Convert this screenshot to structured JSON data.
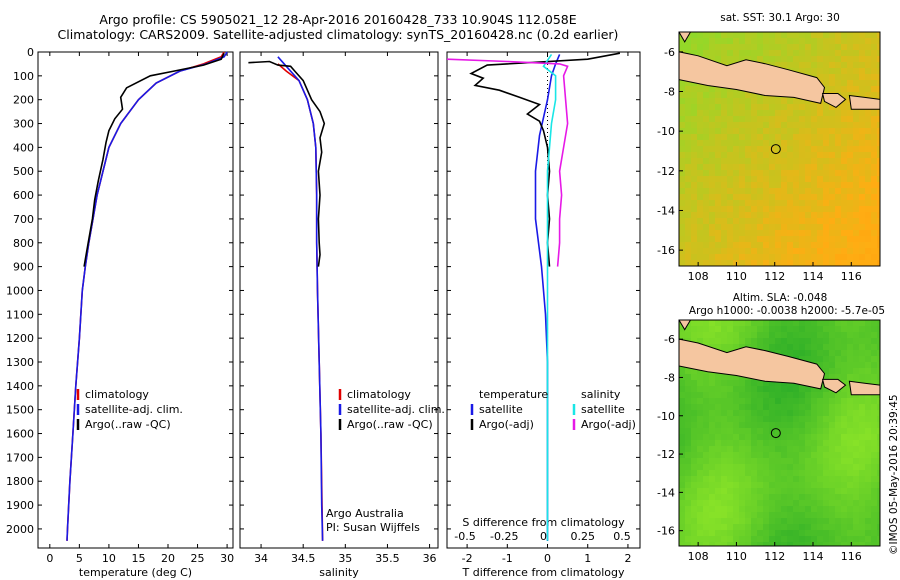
{
  "title": {
    "line1": "Argo profile: CS 5905021_12 28-Apr-2016 20160428_733 10.904S 112.058E",
    "line2": "Climatology: CARS2009. Satellite-adjusted climatology: synTS_20160428.nc (0.2d earlier)"
  },
  "watermark": "©IMOS 05-May-2016 20:39:45",
  "colors": {
    "climatology": "#e00000",
    "satellite": "#1a1ae6",
    "argo": "#000000",
    "satellite_salinity": "#19e6e6",
    "argo_salinity": "#e619e6",
    "land": "#f5c6a0"
  },
  "chart_data": [
    {
      "type": "line",
      "name": "temperature-panel",
      "xlabel": "temperature (deg C)",
      "ylabel": "",
      "xlim": [
        -2,
        31
      ],
      "ylim": [
        2080,
        0
      ],
      "xticks": [
        0,
        5,
        10,
        15,
        20,
        25,
        30
      ],
      "yticks": [
        0,
        100,
        200,
        300,
        400,
        500,
        600,
        700,
        800,
        900,
        1000,
        1100,
        1200,
        1300,
        1400,
        1500,
        1600,
        1700,
        1800,
        1900,
        2000
      ],
      "legend": [
        "climatology",
        "satellite-adj. clim.",
        "Argo(..raw -QC)"
      ],
      "series": [
        {
          "name": "climatology",
          "color": "#e00000",
          "points": [
            [
              29.5,
              0
            ],
            [
              29,
              20
            ],
            [
              26,
              50
            ],
            [
              22,
              80
            ],
            [
              18,
              130
            ],
            [
              15,
              200
            ],
            [
              12,
              300
            ],
            [
              10,
              400
            ],
            [
              9,
              500
            ],
            [
              8,
              600
            ],
            [
              7.3,
              700
            ],
            [
              6.6,
              800
            ],
            [
              6,
              900
            ],
            [
              5.5,
              1000
            ],
            [
              5,
              1200
            ],
            [
              4.4,
              1400
            ],
            [
              3.9,
              1600
            ],
            [
              3.4,
              1800
            ],
            [
              3,
              2000
            ],
            [
              2.9,
              2050
            ]
          ]
        },
        {
          "name": "satellite-adj. clim.",
          "color": "#1a1ae6",
          "points": [
            [
              30,
              0
            ],
            [
              29.5,
              20
            ],
            [
              26.5,
              50
            ],
            [
              22,
              80
            ],
            [
              18,
              130
            ],
            [
              15,
              200
            ],
            [
              12,
              300
            ],
            [
              10,
              400
            ],
            [
              9,
              500
            ],
            [
              8,
              600
            ],
            [
              7.3,
              700
            ],
            [
              6.6,
              800
            ],
            [
              6,
              900
            ],
            [
              5.5,
              1000
            ],
            [
              5,
              1200
            ],
            [
              4.4,
              1400
            ],
            [
              3.9,
              1600
            ],
            [
              3.4,
              1800
            ],
            [
              3,
              2000
            ],
            [
              2.9,
              2050
            ]
          ]
        },
        {
          "name": "Argo(..raw -QC)",
          "color": "#000000",
          "points": [
            [
              29.5,
              5
            ],
            [
              29,
              30
            ],
            [
              26,
              55
            ],
            [
              21,
              80
            ],
            [
              17,
              100
            ],
            [
              13,
              150
            ],
            [
              12,
              190
            ],
            [
              12.3,
              240
            ],
            [
              11,
              280
            ],
            [
              10,
              330
            ],
            [
              9.5,
              380
            ],
            [
              9,
              450
            ],
            [
              8.2,
              540
            ],
            [
              7.6,
              620
            ],
            [
              7.2,
              700
            ],
            [
              6.5,
              800
            ],
            [
              6,
              870
            ],
            [
              5.8,
              900
            ]
          ]
        }
      ]
    },
    {
      "type": "line",
      "name": "salinity-panel",
      "xlabel": "salinity",
      "ylabel": "",
      "xlim": [
        33.75,
        36.1
      ],
      "ylim": [
        2080,
        0
      ],
      "xticks": [
        34,
        34.5,
        35,
        35.5,
        36
      ],
      "legend": [
        "climatology",
        "satellite-adj. clim.",
        "Argo(..raw -QC)"
      ],
      "annotation": [
        "Argo Australia",
        "PI: Susan Wijffels"
      ],
      "series": [
        {
          "name": "climatology",
          "color": "#e00000",
          "points": [
            [
              34.2,
              50
            ],
            [
              34.3,
              80
            ],
            [
              34.45,
              120
            ],
            [
              34.55,
              200
            ],
            [
              34.62,
              300
            ],
            [
              34.65,
              400
            ],
            [
              34.66,
              600
            ],
            [
              34.66,
              800
            ],
            [
              34.67,
              1000
            ],
            [
              34.69,
              1300
            ],
            [
              34.71,
              1600
            ],
            [
              34.73,
              2050
            ]
          ]
        },
        {
          "name": "satellite-adj. clim.",
          "color": "#1a1ae6",
          "points": [
            [
              34.2,
              20
            ],
            [
              34.3,
              60
            ],
            [
              34.45,
              120
            ],
            [
              34.55,
              200
            ],
            [
              34.62,
              300
            ],
            [
              34.65,
              400
            ],
            [
              34.66,
              600
            ],
            [
              34.66,
              800
            ],
            [
              34.67,
              1000
            ],
            [
              34.69,
              1300
            ],
            [
              34.71,
              1600
            ],
            [
              34.72,
              1900
            ],
            [
              34.73,
              2050
            ]
          ]
        },
        {
          "name": "Argo(..raw -QC)",
          "color": "#000000",
          "points": [
            [
              33.85,
              45
            ],
            [
              34.1,
              40
            ],
            [
              34.2,
              55
            ],
            [
              34.35,
              60
            ],
            [
              34.4,
              80
            ],
            [
              34.5,
              120
            ],
            [
              34.6,
              200
            ],
            [
              34.7,
              250
            ],
            [
              34.75,
              300
            ],
            [
              34.7,
              360
            ],
            [
              34.72,
              420
            ],
            [
              34.68,
              500
            ],
            [
              34.7,
              600
            ],
            [
              34.68,
              700
            ],
            [
              34.69,
              800
            ],
            [
              34.7,
              850
            ],
            [
              34.68,
              900
            ]
          ]
        }
      ]
    },
    {
      "type": "line",
      "name": "difference-panel",
      "xlabel": "T difference from climatology",
      "xlabel2": "S difference from climatology",
      "xlim": [
        -2.5,
        2.3
      ],
      "ylim": [
        2080,
        0
      ],
      "xticks": [
        -2,
        -1,
        0,
        1,
        2
      ],
      "xticks2": [
        "-0.5",
        "-0.25",
        "0",
        "0.25",
        "0.5"
      ],
      "legend_left": {
        "title": "temperature",
        "items": [
          "satellite",
          "Argo(-adj)"
        ]
      },
      "legend_right": {
        "title": "salinity",
        "items": [
          "satellite",
          "Argo(-adj)"
        ]
      },
      "series": [
        {
          "name": "temperature satellite",
          "color": "#1a1ae6",
          "points": [
            [
              0.3,
              10
            ],
            [
              0.2,
              50
            ],
            [
              0.1,
              100
            ],
            [
              0,
              200
            ],
            [
              -0.2,
              350
            ],
            [
              -0.3,
              500
            ],
            [
              -0.3,
              700
            ],
            [
              -0.15,
              900
            ],
            [
              -0.05,
              1100
            ],
            [
              0,
              1300
            ],
            [
              0,
              1600
            ],
            [
              0,
              1800
            ],
            [
              0,
              2050
            ]
          ]
        },
        {
          "name": "temperature Argo(-adj)",
          "color": "#000000",
          "points": [
            [
              1.8,
              5
            ],
            [
              1,
              30
            ],
            [
              -1.5,
              55
            ],
            [
              -1.9,
              90
            ],
            [
              -1.6,
              110
            ],
            [
              -1.8,
              140
            ],
            [
              -1.2,
              160
            ],
            [
              -0.7,
              190
            ],
            [
              -0.2,
              220
            ],
            [
              -0.5,
              260
            ],
            [
              -0.2,
              290
            ],
            [
              -0.1,
              330
            ],
            [
              0,
              400
            ],
            [
              0.05,
              500
            ],
            [
              0,
              600
            ],
            [
              0.05,
              700
            ],
            [
              0,
              800
            ],
            [
              0.05,
              900
            ]
          ]
        },
        {
          "name": "salinity satellite",
          "color": "#19e6e6",
          "points": [
            [
              0.1,
              10
            ],
            [
              -0.1,
              60
            ],
            [
              0.2,
              100
            ],
            [
              0.2,
              200
            ],
            [
              0.1,
              300
            ],
            [
              0.05,
              400
            ],
            [
              0,
              500
            ],
            [
              0,
              700
            ],
            [
              0,
              900
            ],
            [
              0,
              1200
            ],
            [
              0,
              1500
            ],
            [
              0,
              1800
            ],
            [
              0,
              2050
            ]
          ]
        },
        {
          "name": "salinity Argo(-adj)",
          "color": "#e619e6",
          "points": [
            [
              -2.5,
              30
            ],
            [
              -1,
              40
            ],
            [
              0.3,
              50
            ],
            [
              0.5,
              60
            ],
            [
              0.4,
              100
            ],
            [
              0.45,
              200
            ],
            [
              0.5,
              300
            ],
            [
              0.4,
              400
            ],
            [
              0.3,
              500
            ],
            [
              0.35,
              600
            ],
            [
              0.3,
              700
            ],
            [
              0.3,
              800
            ],
            [
              0.25,
              900
            ]
          ]
        }
      ]
    },
    {
      "type": "heatmap",
      "name": "sst-map",
      "title": "sat. SST: 30.1  Argo: 30",
      "xticks": [
        108,
        110,
        112,
        114,
        116
      ],
      "yticks": [
        -6,
        -8,
        -10,
        -12,
        -14,
        -16
      ],
      "xlim": [
        107,
        117.5
      ],
      "ylim": [
        -16.8,
        -5
      ],
      "marker": {
        "lon": 112.058,
        "lat": -10.904
      }
    },
    {
      "type": "heatmap",
      "name": "sla-map",
      "title1": "Altim. SLA: -0.048",
      "title2": "Argo h1000: -0.0038 h2000: -5.7e-05",
      "xticks": [
        108,
        110,
        112,
        114,
        116
      ],
      "yticks": [
        -6,
        -8,
        -10,
        -12,
        -14,
        -16
      ],
      "xlim": [
        107,
        117.5
      ],
      "ylim": [
        -16.8,
        -5
      ],
      "marker": {
        "lon": 112.058,
        "lat": -10.904
      }
    }
  ]
}
